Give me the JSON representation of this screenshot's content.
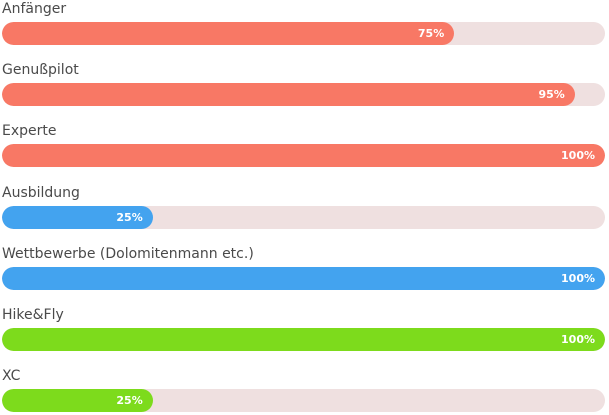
{
  "skills": [
    {
      "label": "Anfänger",
      "percent": 75,
      "percent_text": "75%",
      "color": "#f87865"
    },
    {
      "label": "Genußpilot",
      "percent": 95,
      "percent_text": "95%",
      "color": "#f87865"
    },
    {
      "label": "Experte",
      "percent": 100,
      "percent_text": "100%",
      "color": "#f87865"
    },
    {
      "label": "Ausbildung",
      "percent": 25,
      "percent_text": "25%",
      "color": "#43a3ef"
    },
    {
      "label": "Wettbewerbe (Dolomitenmann etc.)",
      "percent": 100,
      "percent_text": "100%",
      "color": "#43a3ef"
    },
    {
      "label": "Hike&Fly",
      "percent": 100,
      "percent_text": "100%",
      "color": "#7ddb1c"
    },
    {
      "label": "XC",
      "percent": 25,
      "percent_text": "25%",
      "color": "#7ddb1c"
    }
  ],
  "colors": {
    "track": "#efe0e0",
    "label_text": "#4a4a4a",
    "percent_text": "#ffffff"
  }
}
